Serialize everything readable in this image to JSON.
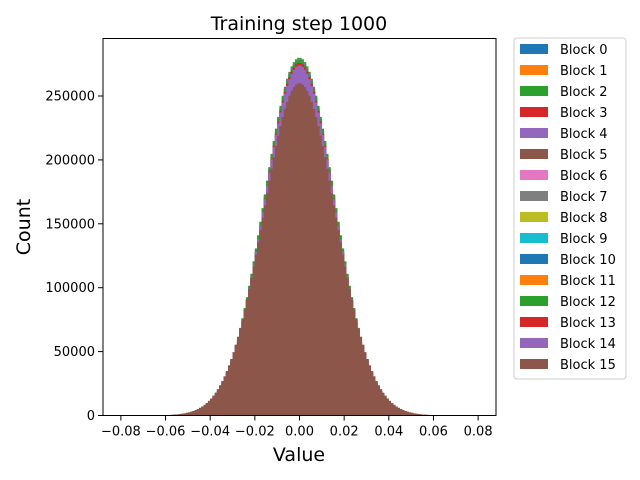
{
  "chart_data": {
    "type": "histogram",
    "title": "Training step 1000",
    "xlabel": "Value",
    "ylabel": "Count",
    "xlim": [
      -0.088,
      0.088
    ],
    "ylim": [
      0,
      295000
    ],
    "x_ticks": [
      -0.08,
      -0.06,
      -0.04,
      -0.02,
      0.0,
      0.02,
      0.04,
      0.06,
      0.08
    ],
    "x_tick_labels": [
      "−0.08",
      "−0.06",
      "−0.04",
      "−0.02",
      "0.00",
      "0.02",
      "0.04",
      "0.06",
      "0.08"
    ],
    "y_ticks": [
      0,
      50000,
      100000,
      150000,
      200000,
      250000
    ],
    "y_tick_labels": [
      "0",
      "50000",
      "100000",
      "150000",
      "200000",
      "250000"
    ],
    "grid": false,
    "legend_placement": "outside-right-top",
    "distribution_note": "approximately normal, centered at 0.00",
    "series": [
      {
        "name": "Block 0",
        "color": "#1f77b4",
        "peak": 278000,
        "sd": 0.0155
      },
      {
        "name": "Block 1",
        "color": "#ff7f0e",
        "peak": 277000,
        "sd": 0.0156
      },
      {
        "name": "Block 2",
        "color": "#2ca02c",
        "peak": 280000,
        "sd": 0.0158
      },
      {
        "name": "Block 3",
        "color": "#d62728",
        "peak": 276000,
        "sd": 0.0157
      },
      {
        "name": "Block 4",
        "color": "#9467bd",
        "peak": 279000,
        "sd": 0.0156
      },
      {
        "name": "Block 5",
        "color": "#8c564b",
        "peak": 260000,
        "sd": 0.0162
      },
      {
        "name": "Block 6",
        "color": "#e377c2",
        "peak": 275000,
        "sd": 0.0156
      },
      {
        "name": "Block 7",
        "color": "#7f7f7f",
        "peak": 276000,
        "sd": 0.0156
      },
      {
        "name": "Block 8",
        "color": "#bcbd22",
        "peak": 276000,
        "sd": 0.0156
      },
      {
        "name": "Block 9",
        "color": "#17becf",
        "peak": 276000,
        "sd": 0.0156
      },
      {
        "name": "Block 10",
        "color": "#1f77b4",
        "peak": 276000,
        "sd": 0.0156
      },
      {
        "name": "Block 11",
        "color": "#ff7f0e",
        "peak": 276000,
        "sd": 0.0156
      },
      {
        "name": "Block 12",
        "color": "#2ca02c",
        "peak": 278000,
        "sd": 0.0158
      },
      {
        "name": "Block 13",
        "color": "#d62728",
        "peak": 276000,
        "sd": 0.0157
      },
      {
        "name": "Block 14",
        "color": "#9467bd",
        "peak": 274000,
        "sd": 0.0158
      },
      {
        "name": "Block 15",
        "color": "#8c564b",
        "peak": 260000,
        "sd": 0.0162
      }
    ]
  }
}
